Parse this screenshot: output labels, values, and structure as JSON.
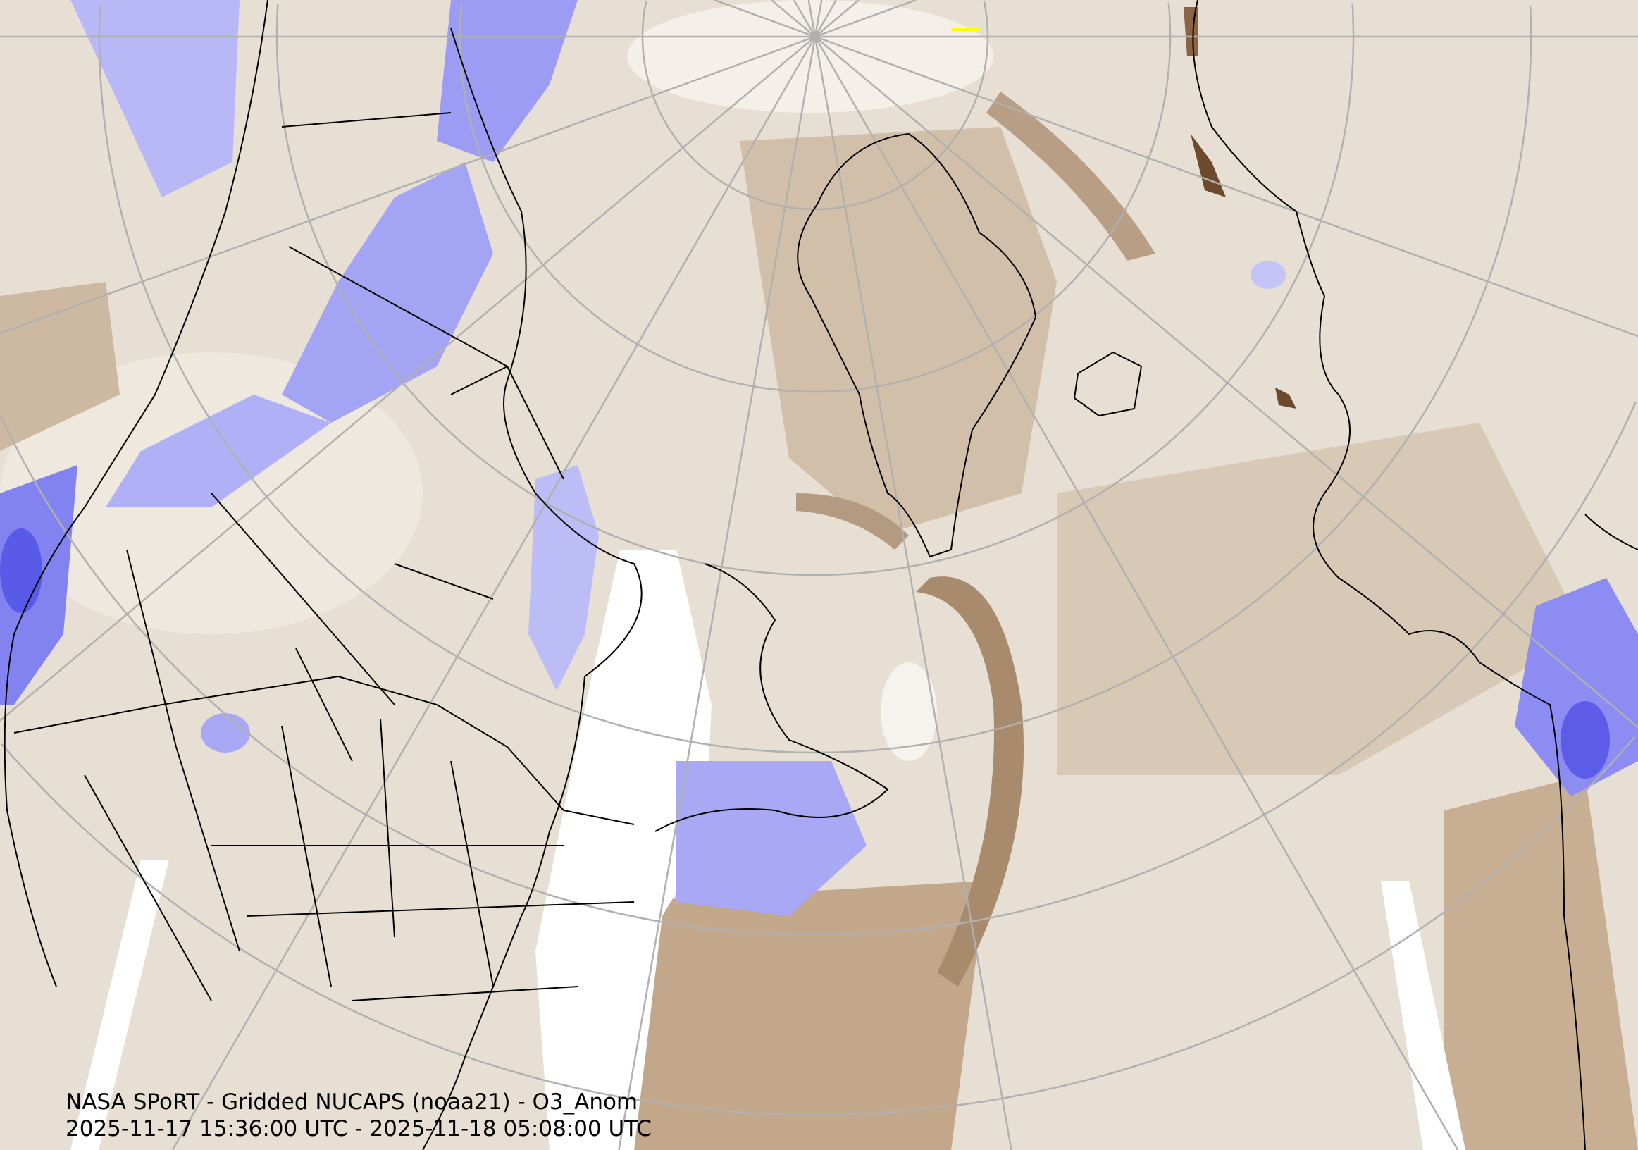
{
  "caption": {
    "title": "NASA SPoRT - Gridded NUCAPS (noaa21) - O3_Anom",
    "time_range": "2025-11-17 15:36:00 UTC - 2025-11-18 05:08:00 UTC"
  },
  "map": {
    "projection": "north-polar-stereographic",
    "field": "O3_Anom",
    "colors": {
      "background": "#e6dcd0",
      "negative_anomaly": "#7a78f0",
      "weak_negative": "#c4c4f6",
      "positive_anomaly": "#a88a6c",
      "strong_positive": "#6e4a2c",
      "no_data": "#ffffff",
      "graticule": "#b0b0b0",
      "coastline": "#000000"
    }
  }
}
